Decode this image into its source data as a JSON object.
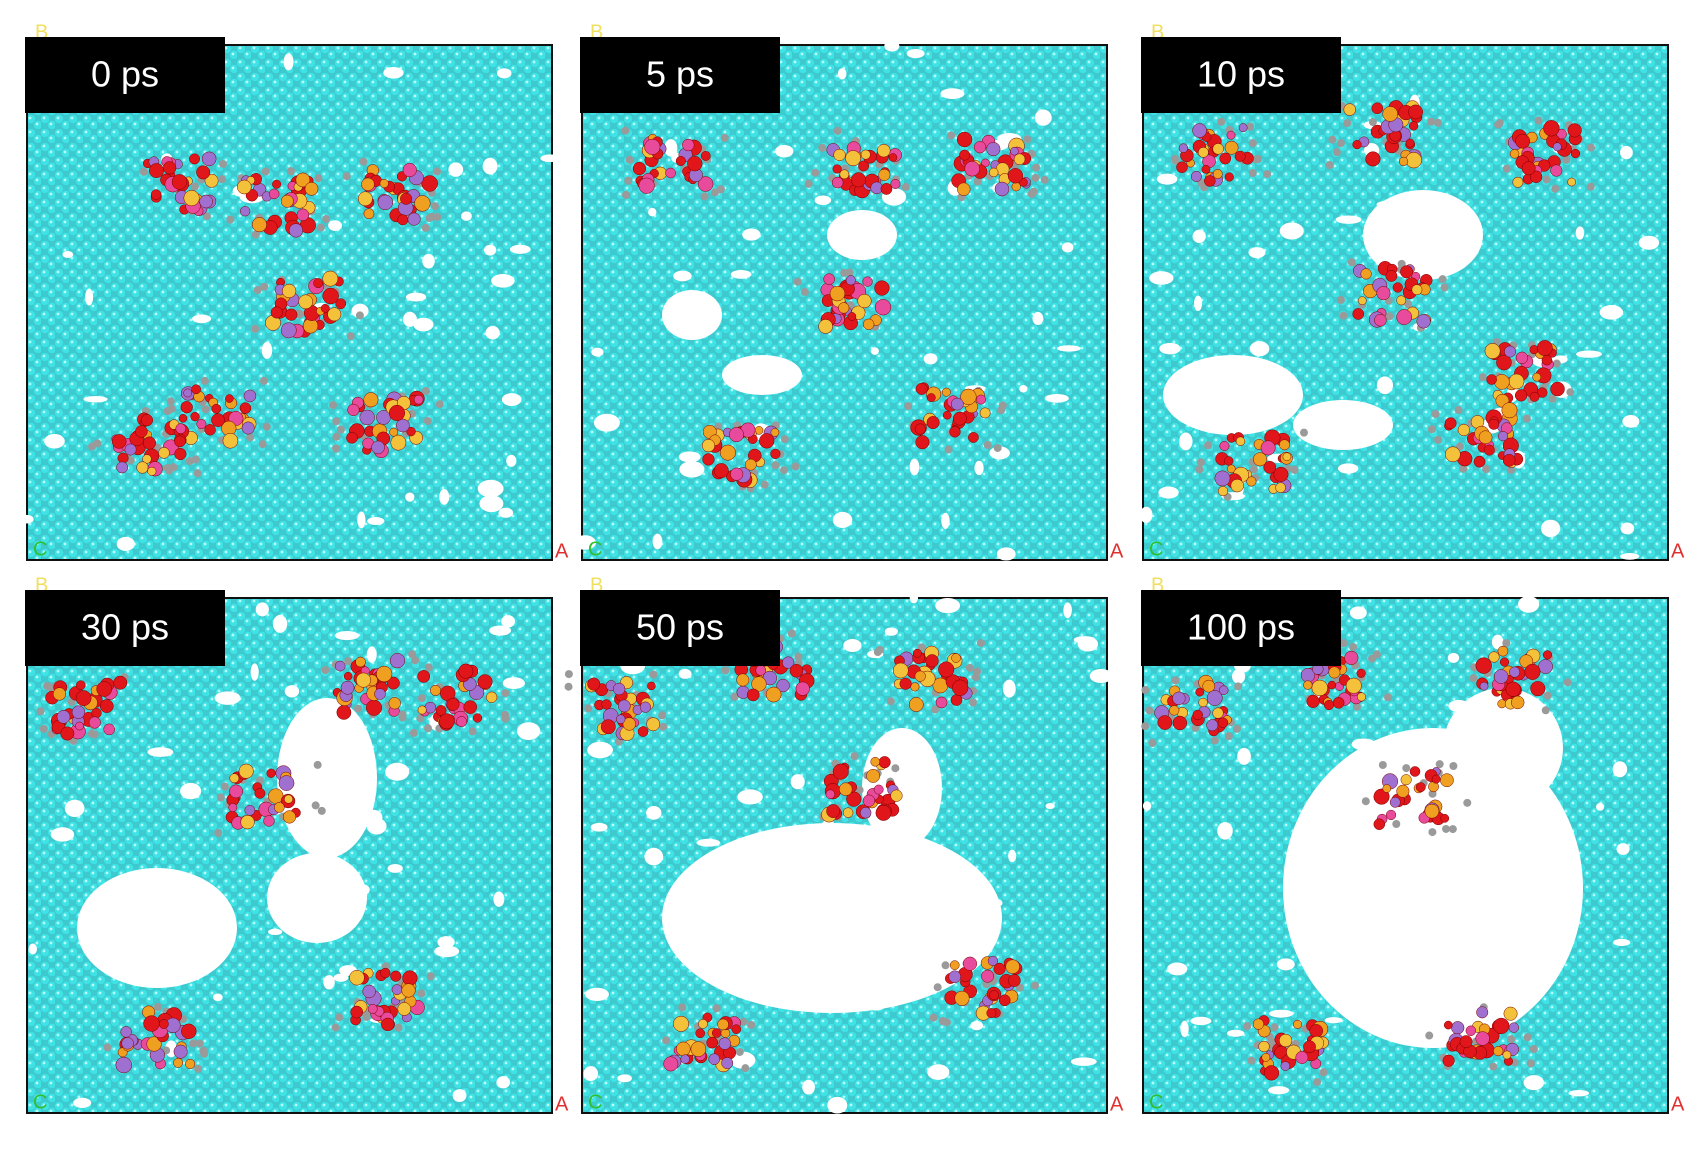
{
  "panels": [
    {
      "label": "0 ps"
    },
    {
      "label": "5 ps"
    },
    {
      "label": "10 ps"
    },
    {
      "label": "30 ps"
    },
    {
      "label": "50 ps"
    },
    {
      "label": "100 ps"
    }
  ],
  "axes": {
    "b": "B",
    "c": "C",
    "a": "A"
  }
}
